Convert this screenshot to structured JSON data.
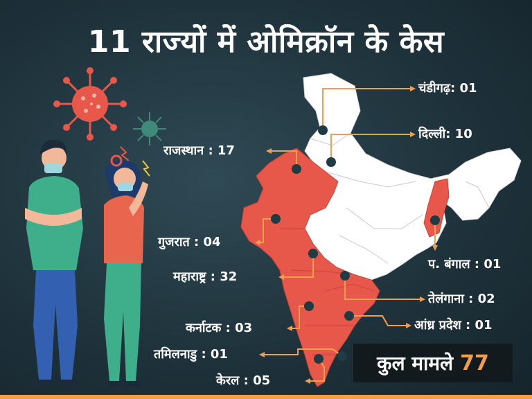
{
  "title": "11 राज्यों में ओमिक्रॉन के केस",
  "total": {
    "label": "कुल मामले",
    "value": "77"
  },
  "colors": {
    "affected": "#e8584a",
    "unaffected": "#ffffff",
    "connector": "#f0a04a",
    "marker": "#1f3b44"
  },
  "states": [
    {
      "name": "चंडीगढ़",
      "count": "01",
      "text": "चंडीगढ़: 01",
      "affected": false
    },
    {
      "name": "दिल्ली",
      "count": "10",
      "text": "दिल्ली: 10",
      "affected": false
    },
    {
      "name": "राजस्थान",
      "count": "17",
      "text": "राजस्थान : 17",
      "affected": true
    },
    {
      "name": "गुजरात",
      "count": "04",
      "text": "गुजरात : 04",
      "affected": true
    },
    {
      "name": "प. बंगाल",
      "count": "01",
      "text": "प. बंगाल : 01",
      "affected": true
    },
    {
      "name": "महाराष्ट्र",
      "count": "32",
      "text": "महाराष्ट्र : 32",
      "affected": true
    },
    {
      "name": "तेलंगाना",
      "count": "02",
      "text": "तेलंगाना : 02",
      "affected": true
    },
    {
      "name": "कर्नाटक",
      "count": "03",
      "text": "कर्नाटक : 03",
      "affected": true
    },
    {
      "name": "आंध्र प्रदेश",
      "count": "01",
      "text": "आंध्र प्रदेश : 01",
      "affected": true
    },
    {
      "name": "तमिलनाडु",
      "count": "01",
      "text": "तमिलनाडु : 01",
      "affected": true
    },
    {
      "name": "केरल",
      "count": "05",
      "text": "केरल : 05",
      "affected": true
    }
  ]
}
